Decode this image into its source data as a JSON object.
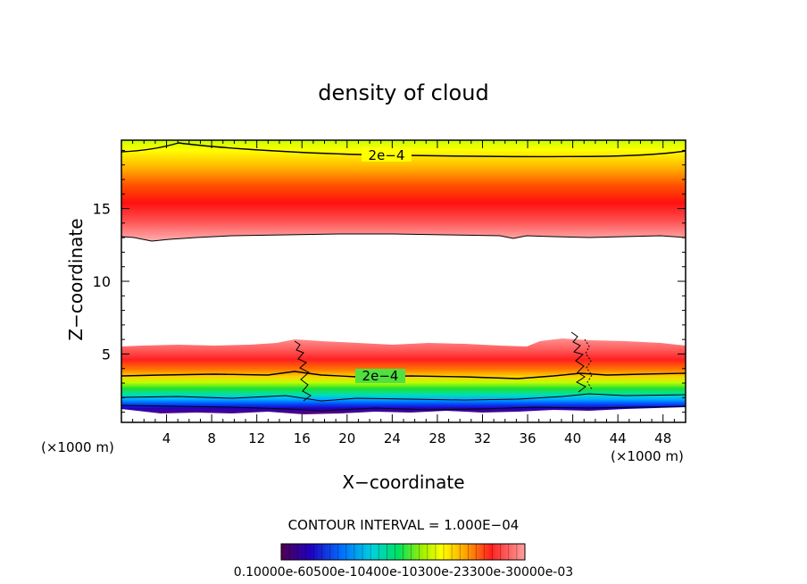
{
  "chart_data": {
    "type": "heatmap",
    "title": "density of cloud",
    "xlabel": "X−coordinate",
    "ylabel": "Z−coordinate",
    "x_unit_left": "(×1000 m)",
    "x_unit_right": "(×1000 m)",
    "xlim": [
      0,
      50
    ],
    "ylim": [
      0.3,
      19.7
    ],
    "x_ticks": [
      4,
      8,
      12,
      16,
      20,
      24,
      28,
      32,
      36,
      40,
      44,
      48
    ],
    "y_ticks": [
      5,
      10,
      15
    ],
    "contour_interval_text": "CONTOUR INTERVAL = 1.000E−04",
    "contour_label_upper": "2e−4",
    "contour_label_lower": "2e−4",
    "colorbar_label_text": "0.10000e-60500e-10400e-10300e-23300e-30000e-03",
    "colorbar_range": [
      0.0001,
      0.003
    ],
    "colormap": [
      "#400050",
      "#0000d0",
      "#0060ff",
      "#00c8ff",
      "#00e070",
      "#80f000",
      "#ffff00",
      "#ffa000",
      "#ff2000",
      "#ff9090"
    ],
    "layers": {
      "lower_cloud": {
        "z_bottom": 1.0,
        "z_top": 5.5,
        "max_at_z": 4.5
      },
      "upper_cloud": {
        "z_bottom": 13.0,
        "z_top": 19.7,
        "max_at_z": 15.0
      }
    }
  }
}
